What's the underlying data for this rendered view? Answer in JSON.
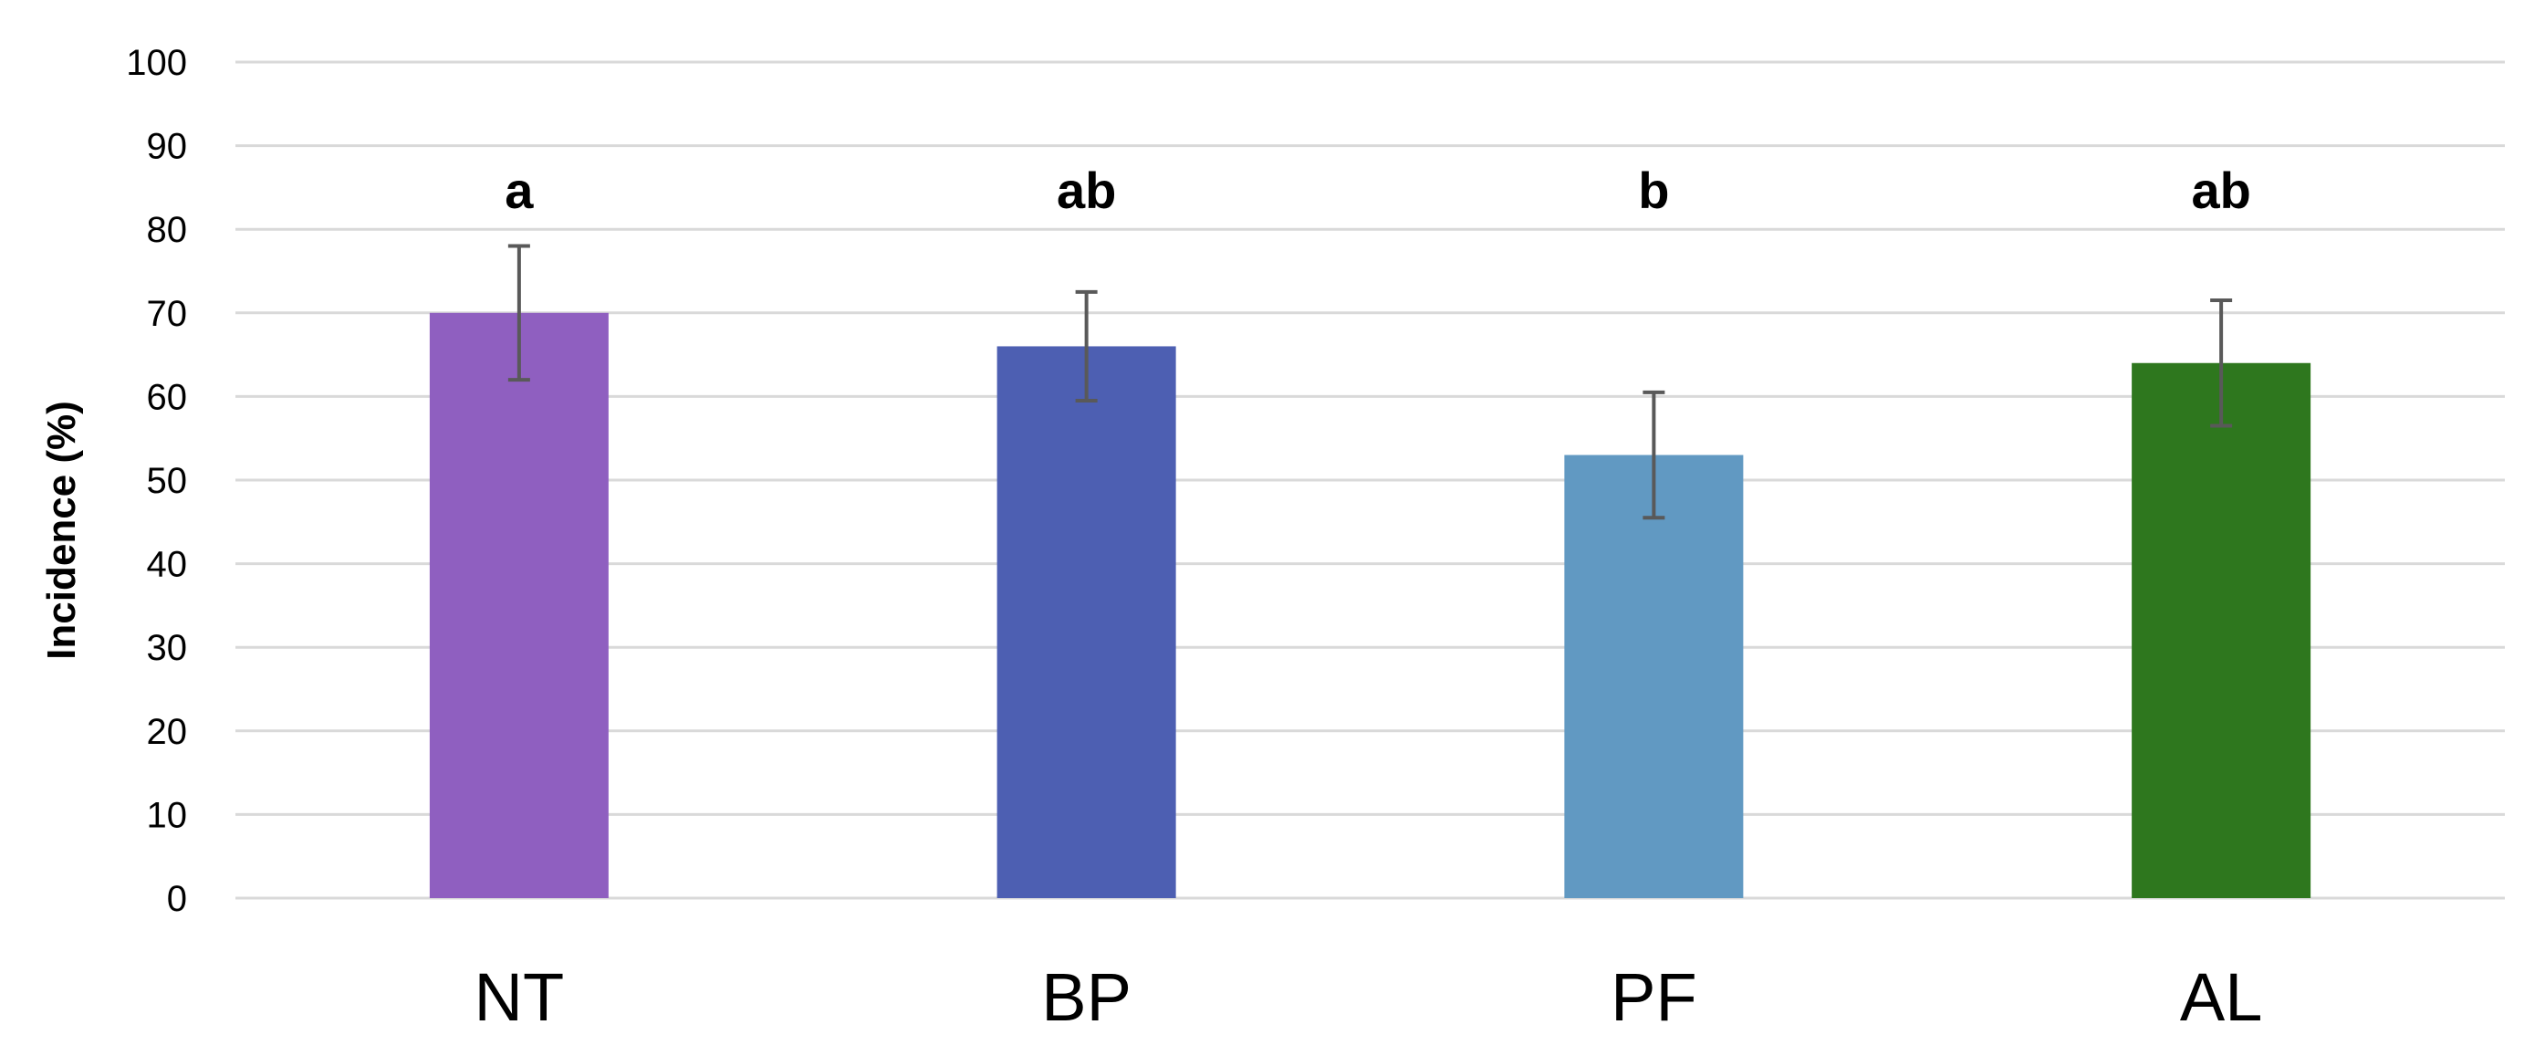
{
  "chart_data": {
    "type": "bar",
    "title": "",
    "xlabel": "",
    "ylabel": "Incidence (%)",
    "ylim": [
      0,
      100
    ],
    "yticks": [
      0,
      10,
      20,
      30,
      40,
      50,
      60,
      70,
      80,
      90,
      100
    ],
    "grid": true,
    "legend": "none",
    "categories": [
      "NT",
      "BP",
      "PF",
      "AL"
    ],
    "values": [
      70,
      66,
      53,
      64
    ],
    "error": [
      8,
      6.5,
      7.5,
      7.5
    ],
    "significance_labels": [
      "a",
      "ab",
      "b",
      "ab"
    ],
    "colors": [
      "#8f5fc0",
      "#4d5fb2",
      "#6199c2",
      "#2e771e"
    ]
  }
}
